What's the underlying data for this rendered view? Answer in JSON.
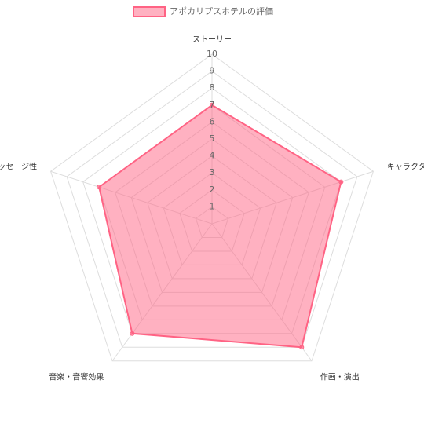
{
  "chart_data": {
    "type": "radar",
    "categories": [
      "ストーリー",
      "キャラクター",
      "作画・演出",
      "音楽・音響効果",
      "メッセージ性"
    ],
    "series": [
      {
        "name": "アポカリプスホテルの評価",
        "color": "#ff6384",
        "values": [
          7,
          8,
          9,
          8,
          7
        ]
      }
    ],
    "ylim": [
      0,
      10
    ],
    "yticks": [
      1,
      2,
      3,
      4,
      5,
      6,
      7,
      8,
      9,
      10
    ],
    "grid": true,
    "legend": "top"
  }
}
